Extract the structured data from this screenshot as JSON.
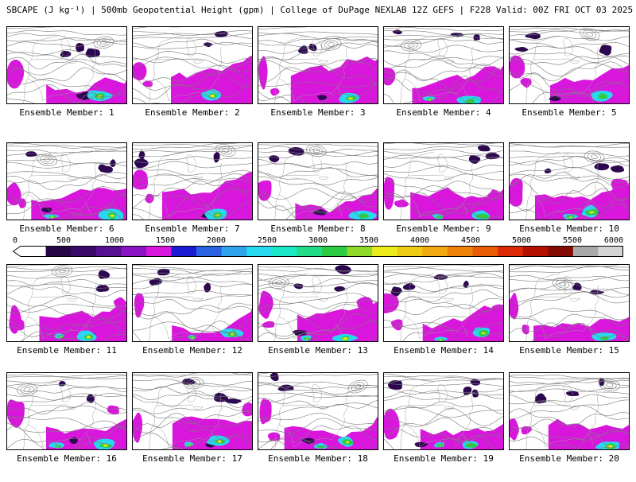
{
  "header": {
    "title": "SBCAPE (J kg⁻¹) | 500mb Geopotential Height (gpm) | College of DuPage NEXLAB 12Z GEFS | F228 Valid: 00Z FRI OCT 03 2025"
  },
  "panels": {
    "label_prefix": "Ensemble Member:",
    "members": [
      "Ensemble Member: 1",
      "Ensemble Member: 2",
      "Ensemble Member: 3",
      "Ensemble Member: 4",
      "Ensemble Member: 5",
      "Ensemble Member: 6",
      "Ensemble Member: 7",
      "Ensemble Member: 8",
      "Ensemble Member: 9",
      "Ensemble Member: 10",
      "Ensemble Member: 11",
      "Ensemble Member: 12",
      "Ensemble Member: 13",
      "Ensemble Member: 14",
      "Ensemble Member: 15",
      "Ensemble Member: 16",
      "Ensemble Member: 17",
      "Ensemble Member: 18",
      "Ensemble Member: 19",
      "Ensemble Member: 20"
    ],
    "rows": [
      [
        1,
        2,
        3,
        4,
        5
      ],
      [
        6,
        7,
        8,
        9,
        10
      ],
      [
        11,
        12,
        13,
        14,
        15
      ],
      [
        16,
        17,
        18,
        19,
        20
      ]
    ]
  },
  "colorbar": {
    "units": "J kg⁻¹",
    "min": 0,
    "max": 6000,
    "step": 250,
    "ticks": [
      "0",
      "500",
      "1000",
      "1500",
      "2000",
      "2500",
      "3000",
      "3500",
      "4000",
      "4500",
      "5000",
      "5500",
      "6000"
    ],
    "colors": [
      "#ffffff",
      "#270748",
      "#3b0a6b",
      "#561092",
      "#8a13c4",
      "#d816dc",
      "#1b1bd2",
      "#2a62e2",
      "#2fa3ec",
      "#28d8ee",
      "#1ce8c8",
      "#22dd88",
      "#2ecc44",
      "#8ed92a",
      "#ecec1c",
      "#eecb14",
      "#f0a90e",
      "#ef8309",
      "#e95c06",
      "#dc2a04",
      "#b31203",
      "#840b02",
      "#a9a9a9",
      "#d4d4d4"
    ]
  },
  "map_palette": {
    "background": "#ffffff",
    "border": "#000000",
    "contour": "#7a7a7a",
    "geography": "#9d9d9d",
    "cape_magenta": "#d816dc",
    "cape_dark_purple": "#2d0850",
    "cape_cyan": "#28d8ee",
    "cape_green": "#2ecc44",
    "cape_yellow": "#ecec1c"
  }
}
